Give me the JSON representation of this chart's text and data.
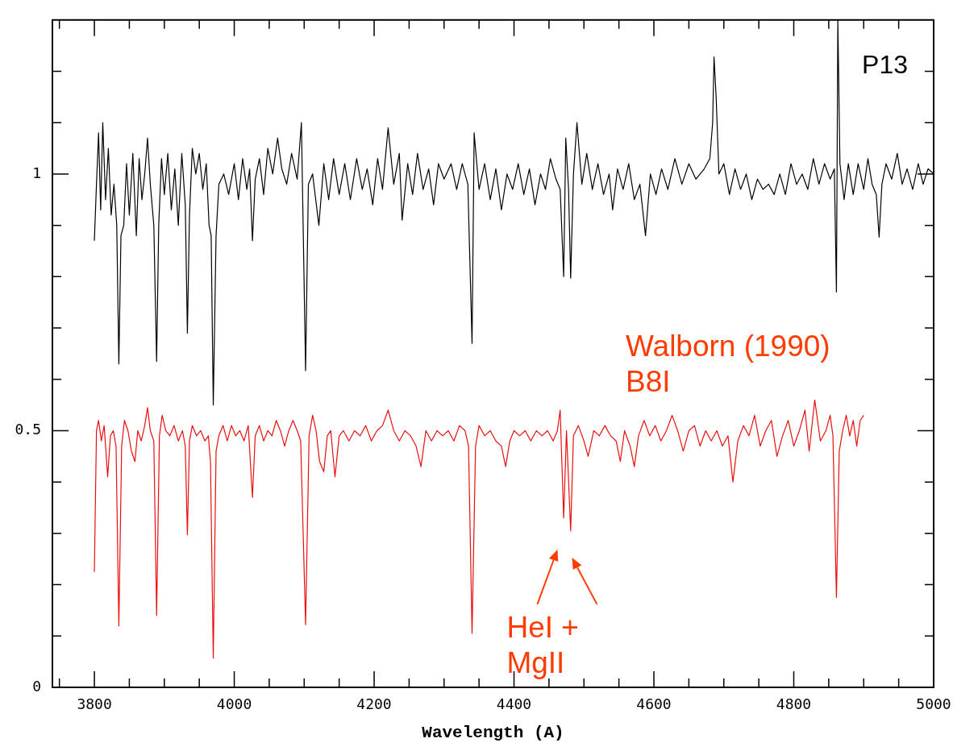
{
  "chart_data": {
    "type": "line",
    "xlabel": "Wavelength (A)",
    "xlim": [
      3740,
      5000
    ],
    "ylim": [
      0,
      1.3
    ],
    "xticks": [
      {
        "value": 3750,
        "label": null
      },
      3800,
      {
        "value": 3850,
        "label": null
      },
      {
        "value": 3900,
        "label": null
      },
      {
        "value": 3950,
        "label": null
      },
      4000,
      {
        "value": 4050,
        "label": null
      },
      {
        "value": 4100,
        "label": null
      },
      {
        "value": 4150,
        "label": null
      },
      4200,
      {
        "value": 4250,
        "label": null
      },
      {
        "value": 4300,
        "label": null
      },
      {
        "value": 4350,
        "label": null
      },
      4400,
      {
        "value": 4450,
        "label": null
      },
      {
        "value": 4500,
        "label": null
      },
      {
        "value": 4550,
        "label": null
      },
      4600,
      {
        "value": 4650,
        "label": null
      },
      {
        "value": 4700,
        "label": null
      },
      {
        "value": 4750,
        "label": null
      },
      4800,
      {
        "value": 4850,
        "label": null
      },
      {
        "value": 4900,
        "label": null
      },
      {
        "value": 4950,
        "label": null
      },
      5000
    ],
    "yticks": [
      0,
      {
        "value": 0.1,
        "label": null
      },
      {
        "value": 0.2,
        "label": null
      },
      {
        "value": 0.3,
        "label": null
      },
      {
        "value": 0.4,
        "label": null
      },
      0.5,
      {
        "value": 0.6,
        "label": null
      },
      {
        "value": 0.7,
        "label": null
      },
      {
        "value": 0.8,
        "label": null
      },
      {
        "value": 0.9,
        "label": null
      },
      1,
      {
        "value": 1.1,
        "label": null
      },
      {
        "value": 1.2,
        "label": null
      }
    ],
    "marker": "none",
    "line_style": "solid",
    "annotations": [
      "P13",
      "Walborn (1990) B8I",
      {
        "text": "HeI + MgII",
        "x": 4476,
        "y": 0.3
      }
    ],
    "series": [
      {
        "color": "#000000",
        "x": [
          3800,
          3803,
          3806,
          3809,
          3812,
          3816,
          3820,
          3824,
          3828,
          3832,
          3835,
          3838,
          3842,
          3846,
          3850,
          3855,
          3860,
          3864,
          3868,
          3872,
          3876,
          3880,
          3885,
          3889,
          3892,
          3896,
          3900,
          3905,
          3910,
          3915,
          3920,
          3925,
          3930,
          3933,
          3936,
          3940,
          3945,
          3950,
          3955,
          3960,
          3964,
          3967,
          3970,
          3974,
          3978,
          3985,
          3992,
          4000,
          4006,
          4012,
          4018,
          4022,
          4026,
          4030,
          4036,
          4042,
          4048,
          4055,
          4062,
          4068,
          4075,
          4082,
          4090,
          4096,
          4102,
          4106,
          4112,
          4121,
          4128,
          4135,
          4142,
          4150,
          4158,
          4166,
          4175,
          4183,
          4190,
          4198,
          4205,
          4212,
          4220,
          4228,
          4236,
          4240,
          4248,
          4255,
          4262,
          4270,
          4278,
          4285,
          4292,
          4300,
          4310,
          4318,
          4326,
          4334,
          4340,
          4343,
          4350,
          4358,
          4366,
          4374,
          4382,
          4390,
          4398,
          4406,
          4414,
          4422,
          4430,
          4438,
          4445,
          4452,
          4460,
          4466,
          4471,
          4474,
          4478,
          4481,
          4485,
          4490,
          4497,
          4504,
          4512,
          4520,
          4528,
          4536,
          4541,
          4548,
          4556,
          4564,
          4572,
          4580,
          4588,
          4595,
          4603,
          4611,
          4620,
          4630,
          4640,
          4650,
          4660,
          4672,
          4680,
          4684,
          4686,
          4689,
          4693,
          4700,
          4708,
          4716,
          4724,
          4732,
          4740,
          4748,
          4756,
          4764,
          4772,
          4780,
          4788,
          4796,
          4804,
          4812,
          4820,
          4828,
          4836,
          4844,
          4852,
          4858,
          4861,
          4863,
          4866,
          4872,
          4878,
          4885,
          4892,
          4900,
          4906,
          4912,
          4918,
          4922,
          4926,
          4932,
          4940,
          4948,
          4955,
          4962,
          4970,
          4978,
          4985,
          4992,
          5000
        ],
        "values": [
          0.87,
          0.98,
          1.08,
          0.93,
          1.1,
          0.95,
          1.05,
          0.92,
          0.98,
          0.9,
          0.63,
          0.88,
          0.9,
          1.02,
          0.92,
          1.04,
          0.88,
          1.03,
          0.95,
          1.0,
          1.07,
          0.98,
          0.9,
          0.635,
          0.9,
          1.03,
          0.96,
          1.04,
          0.93,
          1.01,
          0.9,
          1.04,
          0.94,
          0.69,
          0.92,
          1.05,
          1.0,
          1.04,
          0.97,
          1.02,
          0.9,
          0.88,
          0.55,
          0.88,
          0.98,
          1.0,
          0.96,
          1.02,
          0.95,
          1.03,
          0.97,
          1.01,
          0.87,
          0.99,
          1.03,
          0.96,
          1.05,
          1.0,
          1.07,
          1.01,
          0.98,
          1.04,
          0.99,
          1.1,
          0.617,
          0.98,
          1.0,
          0.9,
          1.02,
          0.95,
          1.03,
          0.96,
          1.02,
          0.95,
          1.03,
          0.97,
          1.01,
          0.94,
          1.03,
          0.97,
          1.09,
          0.98,
          1.04,
          0.91,
          1.02,
          0.96,
          1.04,
          0.97,
          1.01,
          0.94,
          1.02,
          0.99,
          1.02,
          0.97,
          1.02,
          0.98,
          0.67,
          1.08,
          0.97,
          1.02,
          0.95,
          1.01,
          0.93,
          1.0,
          0.97,
          1.02,
          0.96,
          1.01,
          0.94,
          1.0,
          0.97,
          1.03,
          0.99,
          0.97,
          0.8,
          1.07,
          0.97,
          0.797,
          1.0,
          1.1,
          0.98,
          1.04,
          0.97,
          1.02,
          0.96,
          1.0,
          0.93,
          1.01,
          0.97,
          1.02,
          0.95,
          0.98,
          0.88,
          1.0,
          0.96,
          1.01,
          0.97,
          1.03,
          0.98,
          1.02,
          0.99,
          1.01,
          1.03,
          1.1,
          1.228,
          1.15,
          1.0,
          1.02,
          0.96,
          1.01,
          0.97,
          1.0,
          0.95,
          0.99,
          0.97,
          0.98,
          0.96,
          1.0,
          0.96,
          1.02,
          0.98,
          1.0,
          0.97,
          1.03,
          0.98,
          1.02,
          0.99,
          1.01,
          0.77,
          1.3,
          1.02,
          0.95,
          1.02,
          0.96,
          1.02,
          0.97,
          1.03,
          0.98,
          0.96,
          0.877,
          0.98,
          1.02,
          0.99,
          1.04,
          0.98,
          1.01,
          0.97,
          1.02,
          0.98,
          1.01,
          1.0
        ]
      },
      {
        "color": "#e8100f",
        "x": [
          3800,
          3803,
          3806,
          3810,
          3814,
          3819,
          3823,
          3827,
          3831,
          3835,
          3839,
          3843,
          3848,
          3853,
          3858,
          3862,
          3867,
          3872,
          3876,
          3880,
          3885,
          3889,
          3893,
          3897,
          3902,
          3908,
          3914,
          3920,
          3926,
          3930,
          3933,
          3936,
          3940,
          3946,
          3952,
          3958,
          3963,
          3966,
          3970,
          3974,
          3978,
          3984,
          3990,
          3996,
          4002,
          4008,
          4014,
          4020,
          4026,
          4030,
          4036,
          4042,
          4048,
          4054,
          4060,
          4066,
          4072,
          4078,
          4084,
          4090,
          4095,
          4102,
          4107,
          4112,
          4117,
          4122,
          4128,
          4133,
          4138,
          4144,
          4150,
          4156,
          4164,
          4172,
          4180,
          4188,
          4196,
          4204,
          4212,
          4220,
          4228,
          4236,
          4244,
          4252,
          4260,
          4267,
          4274,
          4282,
          4290,
          4298,
          4306,
          4314,
          4322,
          4330,
          4335,
          4340,
          4345,
          4350,
          4358,
          4366,
          4374,
          4382,
          4388,
          4394,
          4400,
          4408,
          4416,
          4424,
          4432,
          4440,
          4448,
          4456,
          4462,
          4466,
          4471,
          4475,
          4481,
          4485,
          4492,
          4500,
          4506,
          4514,
          4522,
          4530,
          4538,
          4546,
          4552,
          4558,
          4566,
          4572,
          4578,
          4586,
          4594,
          4602,
          4610,
          4618,
          4626,
          4634,
          4642,
          4650,
          4658,
          4666,
          4674,
          4682,
          4690,
          4698,
          4706,
          4713,
          4720,
          4728,
          4736,
          4744,
          4752,
          4760,
          4768,
          4776,
          4784,
          4792,
          4800,
          4808,
          4816,
          4822,
          4830,
          4838,
          4846,
          4852,
          4856,
          4861,
          4865,
          4870,
          4875,
          4880,
          4885,
          4890,
          4895,
          4900
        ],
        "values": [
          0.225,
          0.5,
          0.52,
          0.48,
          0.51,
          0.41,
          0.49,
          0.5,
          0.47,
          0.12,
          0.47,
          0.52,
          0.5,
          0.46,
          0.44,
          0.5,
          0.48,
          0.51,
          0.545,
          0.5,
          0.48,
          0.14,
          0.49,
          0.53,
          0.5,
          0.49,
          0.51,
          0.48,
          0.5,
          0.47,
          0.297,
          0.48,
          0.51,
          0.49,
          0.5,
          0.48,
          0.49,
          0.44,
          0.057,
          0.46,
          0.49,
          0.51,
          0.48,
          0.51,
          0.49,
          0.5,
          0.48,
          0.51,
          0.37,
          0.49,
          0.51,
          0.48,
          0.5,
          0.49,
          0.52,
          0.5,
          0.47,
          0.5,
          0.52,
          0.5,
          0.48,
          0.122,
          0.49,
          0.53,
          0.5,
          0.44,
          0.42,
          0.49,
          0.5,
          0.41,
          0.49,
          0.5,
          0.48,
          0.5,
          0.49,
          0.51,
          0.48,
          0.5,
          0.51,
          0.54,
          0.5,
          0.48,
          0.5,
          0.49,
          0.47,
          0.43,
          0.5,
          0.48,
          0.5,
          0.49,
          0.5,
          0.48,
          0.51,
          0.5,
          0.47,
          0.105,
          0.47,
          0.51,
          0.49,
          0.5,
          0.48,
          0.47,
          0.43,
          0.48,
          0.5,
          0.49,
          0.5,
          0.48,
          0.5,
          0.49,
          0.5,
          0.48,
          0.5,
          0.54,
          0.33,
          0.5,
          0.305,
          0.49,
          0.51,
          0.48,
          0.45,
          0.5,
          0.49,
          0.51,
          0.49,
          0.48,
          0.44,
          0.5,
          0.47,
          0.43,
          0.49,
          0.52,
          0.49,
          0.51,
          0.48,
          0.5,
          0.53,
          0.5,
          0.46,
          0.5,
          0.51,
          0.47,
          0.5,
          0.48,
          0.5,
          0.47,
          0.49,
          0.4,
          0.48,
          0.51,
          0.49,
          0.53,
          0.47,
          0.5,
          0.52,
          0.45,
          0.49,
          0.52,
          0.47,
          0.5,
          0.54,
          0.46,
          0.56,
          0.48,
          0.5,
          0.53,
          0.49,
          0.175,
          0.46,
          0.5,
          0.53,
          0.49,
          0.52,
          0.47,
          0.52,
          0.53
        ]
      }
    ]
  }
}
